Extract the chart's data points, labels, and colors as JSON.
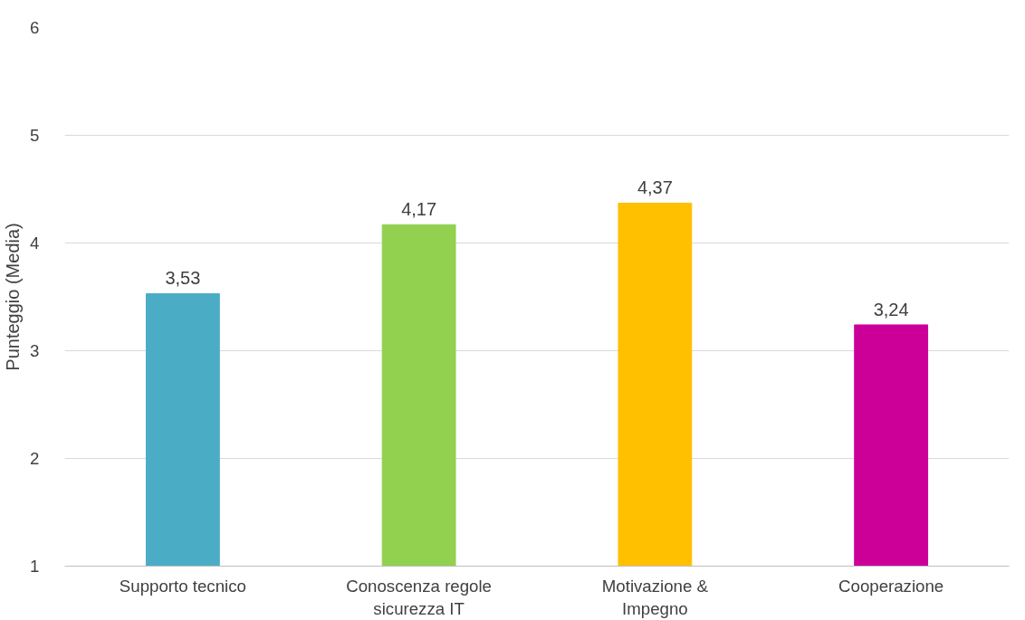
{
  "chart_data": {
    "type": "bar",
    "ylabel": "Punteggio (Media)",
    "categories": [
      "Supporto tecnico",
      "Conoscenza regole sicurezza IT",
      "Motivazione & Impegno",
      "Cooperazione"
    ],
    "values": [
      3.53,
      4.17,
      4.37,
      3.24
    ],
    "colors": [
      "#4bacc6",
      "#92d050",
      "#ffc000",
      "#cc0099"
    ],
    "value_labels": [
      "3,53",
      "4,17",
      "4,37",
      "3,24"
    ],
    "ylim": [
      1,
      6
    ],
    "yticks": [
      1,
      2,
      3,
      4,
      5,
      6
    ],
    "grid": "y"
  }
}
